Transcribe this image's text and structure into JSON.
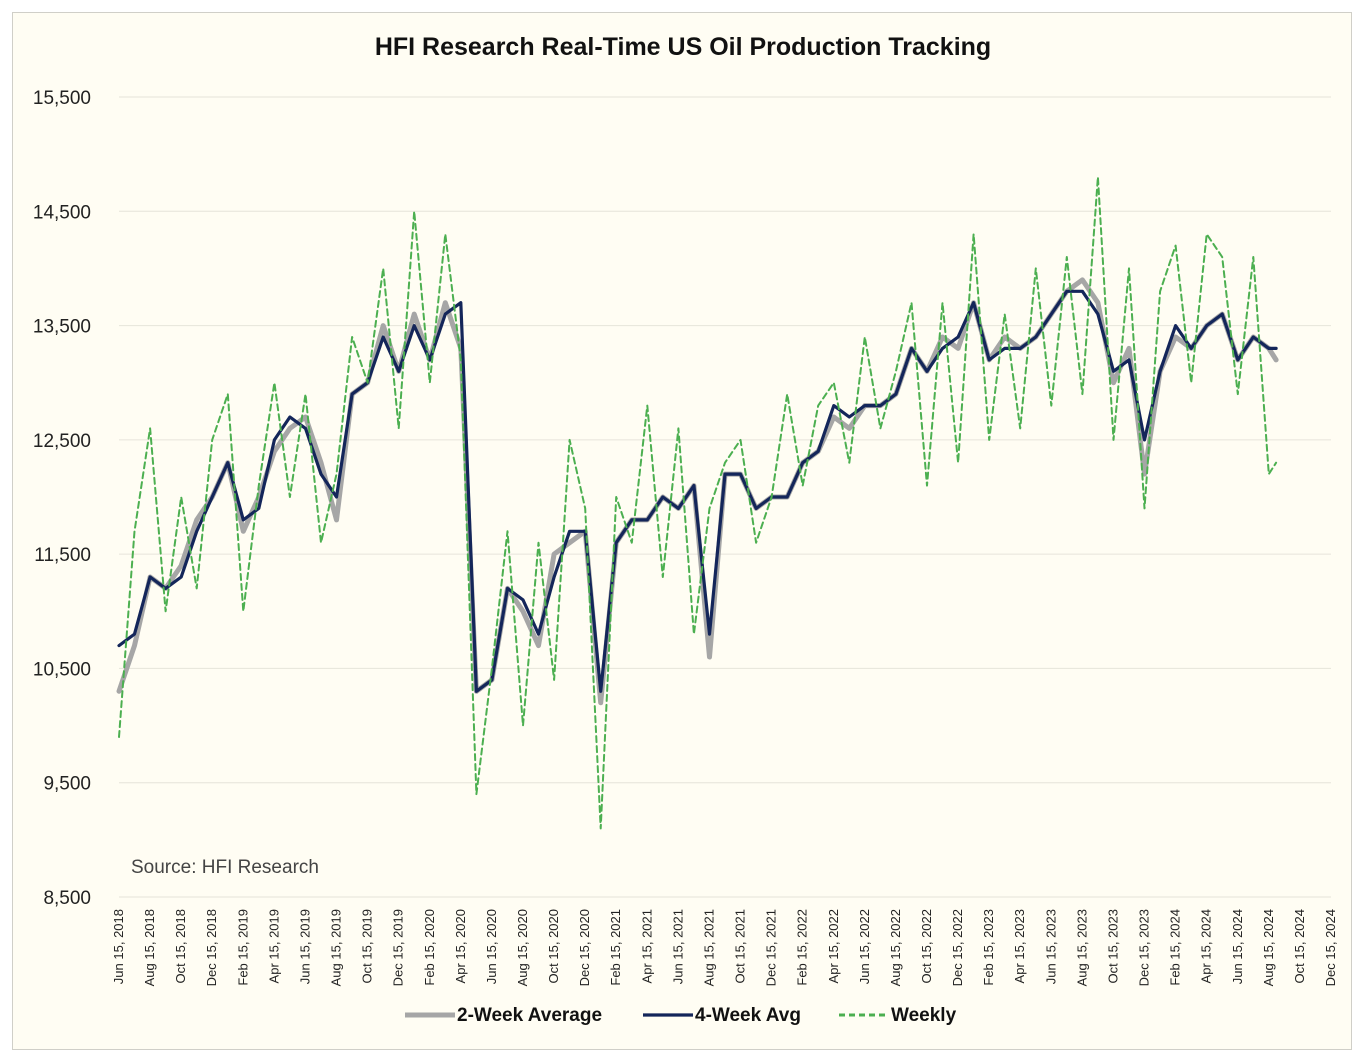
{
  "chart_data": {
    "type": "line",
    "title": "HFI Research Real-Time US Oil Production Tracking",
    "source": "Source: HFI Research",
    "xlabel": "",
    "ylabel": "",
    "ylim": [
      8500,
      15500
    ],
    "yticks": [
      "15,500",
      "14,500",
      "13,500",
      "12,500",
      "11,500",
      "10,500",
      "9,500",
      "8,500"
    ],
    "ytick_values": [
      15500,
      14500,
      13500,
      12500,
      11500,
      10500,
      9500,
      8500
    ],
    "xtick_labels": [
      "Jun 15, 2018",
      "Aug 15, 2018",
      "Oct 15, 2018",
      "Dec 15, 2018",
      "Feb 15, 2019",
      "Apr 15, 2019",
      "Jun 15, 2019",
      "Aug 15, 2019",
      "Oct 15, 2019",
      "Dec 15, 2019",
      "Feb 15, 2020",
      "Apr 15, 2020",
      "Jun 15, 2020",
      "Aug 15, 2020",
      "Oct 15, 2020",
      "Dec 15, 2020",
      "Feb 15, 2021",
      "Apr 15, 2021",
      "Jun 15, 2021",
      "Aug 15, 2021",
      "Oct 15, 2021",
      "Dec 15, 2021",
      "Feb 15, 2022",
      "Apr 15, 2022",
      "Jun 15, 2022",
      "Aug 15, 2022",
      "Oct 15, 2022",
      "Dec 15, 2022",
      "Feb 15, 2023",
      "Apr 15, 2023",
      "Jun 15, 2023",
      "Aug 15, 2023",
      "Oct 15, 2023",
      "Dec 15, 2023",
      "Feb 15, 2024",
      "Apr 15, 2024",
      "Jun 15, 2024",
      "Aug 15, 2024",
      "Oct 15, 2024",
      "Dec 15, 2024"
    ],
    "x": [
      "Jun 15, 2018",
      "Jul 15, 2018",
      "Aug 15, 2018",
      "Sep 15, 2018",
      "Oct 15, 2018",
      "Nov 15, 2018",
      "Dec 15, 2018",
      "Jan 15, 2019",
      "Feb 15, 2019",
      "Mar 15, 2019",
      "Apr 15, 2019",
      "May 15, 2019",
      "Jun 15, 2019",
      "Jul 15, 2019",
      "Aug 15, 2019",
      "Sep 15, 2019",
      "Oct 15, 2019",
      "Nov 15, 2019",
      "Dec 15, 2019",
      "Jan 15, 2020",
      "Feb 15, 2020",
      "Mar 15, 2020",
      "Apr 15, 2020",
      "May 15, 2020",
      "Jun 15, 2020",
      "Jul 15, 2020",
      "Aug 15, 2020",
      "Sep 15, 2020",
      "Oct 15, 2020",
      "Nov 15, 2020",
      "Dec 15, 2020",
      "Jan 15, 2021",
      "Feb 15, 2021",
      "Mar 15, 2021",
      "Apr 15, 2021",
      "May 15, 2021",
      "Jun 15, 2021",
      "Jul 15, 2021",
      "Aug 15, 2021",
      "Sep 15, 2021",
      "Oct 15, 2021",
      "Nov 15, 2021",
      "Dec 15, 2021",
      "Jan 15, 2022",
      "Feb 15, 2022",
      "Mar 15, 2022",
      "Apr 15, 2022",
      "May 15, 2022",
      "Jun 15, 2022",
      "Jul 15, 2022",
      "Aug 15, 2022",
      "Sep 15, 2022",
      "Oct 15, 2022",
      "Nov 15, 2022",
      "Dec 15, 2022",
      "Jan 15, 2023",
      "Feb 15, 2023",
      "Mar 15, 2023",
      "Apr 15, 2023",
      "May 15, 2023",
      "Jun 15, 2023",
      "Jul 15, 2023",
      "Aug 15, 2023",
      "Sep 15, 2023",
      "Oct 15, 2023",
      "Nov 15, 2023",
      "Dec 15, 2023",
      "Jan 15, 2024",
      "Feb 15, 2024",
      "Mar 15, 2024",
      "Apr 15, 2024",
      "May 15, 2024",
      "Jun 15, 2024",
      "Jul 15, 2024",
      "Aug 15, 2024",
      "Aug 29, 2024"
    ],
    "series": [
      {
        "name": "2-Week Average",
        "color": "#a6a6a6",
        "style": "solid",
        "values": [
          10300,
          10700,
          11300,
          11200,
          11400,
          11800,
          12000,
          12300,
          11700,
          12000,
          12400,
          12600,
          12700,
          12300,
          11800,
          12900,
          13000,
          13500,
          13100,
          13600,
          13200,
          13700,
          13300,
          10300,
          10400,
          11200,
          11000,
          10700,
          11500,
          11600,
          11700,
          10200,
          11600,
          11800,
          11800,
          12000,
          11900,
          12100,
          10600,
          12200,
          12200,
          11900,
          12000,
          12000,
          12300,
          12400,
          12700,
          12600,
          12800,
          12800,
          12900,
          13300,
          13100,
          13400,
          13300,
          13700,
          13200,
          13400,
          13300,
          13400,
          13600,
          13800,
          13900,
          13700,
          13000,
          13300,
          12200,
          13100,
          13400,
          13300,
          13500,
          13600,
          13200,
          13400,
          13300,
          13200
        ]
      },
      {
        "name": "4-Week Avg",
        "color": "#14265a",
        "style": "solid",
        "values": [
          10700,
          10800,
          11300,
          11200,
          11300,
          11700,
          12000,
          12300,
          11800,
          11900,
          12500,
          12700,
          12600,
          12200,
          12000,
          12900,
          13000,
          13400,
          13100,
          13500,
          13200,
          13600,
          13700,
          10300,
          10400,
          11200,
          11100,
          10800,
          11300,
          11700,
          11700,
          10300,
          11600,
          11800,
          11800,
          12000,
          11900,
          12100,
          10800,
          12200,
          12200,
          11900,
          12000,
          12000,
          12300,
          12400,
          12800,
          12700,
          12800,
          12800,
          12900,
          13300,
          13100,
          13300,
          13400,
          13700,
          13200,
          13300,
          13300,
          13400,
          13600,
          13800,
          13800,
          13600,
          13100,
          13200,
          12500,
          13100,
          13500,
          13300,
          13500,
          13600,
          13200,
          13400,
          13300,
          13300
        ]
      },
      {
        "name": "Weekly",
        "color": "#4caf50",
        "style": "dashed",
        "values": [
          9900,
          11700,
          12600,
          11000,
          12000,
          11200,
          12500,
          12900,
          11000,
          12100,
          13000,
          12000,
          12900,
          11600,
          12200,
          13400,
          13000,
          14000,
          12600,
          14500,
          13000,
          14300,
          13200,
          9400,
          10500,
          11700,
          10000,
          11600,
          10400,
          12500,
          11900,
          9100,
          12000,
          11600,
          12800,
          11300,
          12600,
          10800,
          11900,
          12300,
          12500,
          11600,
          12000,
          12900,
          12100,
          12800,
          13000,
          12300,
          13400,
          12600,
          13100,
          13700,
          12100,
          13700,
          12300,
          14300,
          12500,
          13600,
          12600,
          14000,
          12800,
          14100,
          12900,
          14800,
          12500,
          14000,
          11900,
          13800,
          14200,
          13000,
          14300,
          14100,
          12900,
          14100,
          12200,
          12300
        ]
      }
    ],
    "legend": {
      "placement": "bottom",
      "items": [
        "2-Week Average",
        "4-Week Avg",
        "Weekly"
      ]
    },
    "grid": true
  }
}
